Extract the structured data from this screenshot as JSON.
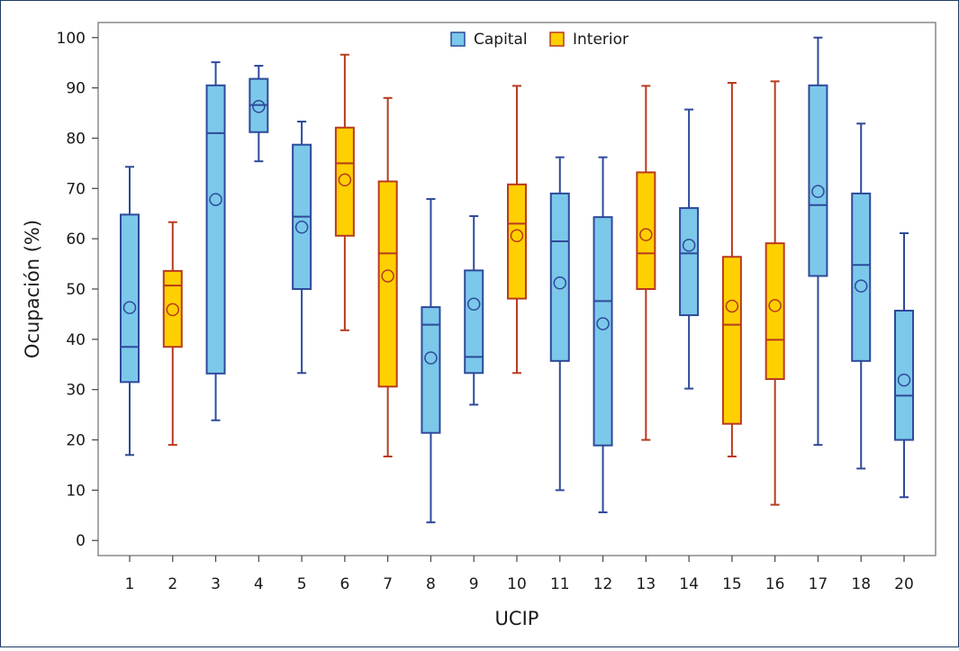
{
  "chart_data": {
    "type": "boxplot",
    "title": "",
    "xlabel": "UCIP",
    "ylabel": "Ocupación (%)",
    "ylim": [
      -3,
      103
    ],
    "yticks": [
      0,
      10,
      20,
      30,
      40,
      50,
      60,
      70,
      80,
      90,
      100
    ],
    "grid": false,
    "legend": {
      "position": "top-center",
      "entries": [
        {
          "name": "Capital",
          "fill": "#7cc8ea",
          "stroke": "#2e4a9a"
        },
        {
          "name": "Interior",
          "fill": "#ffd000",
          "stroke": "#b83a1f"
        }
      ]
    },
    "categories": [
      "1",
      "2",
      "3",
      "4",
      "5",
      "6",
      "7",
      "8",
      "9",
      "10",
      "11",
      "12",
      "13",
      "14",
      "15",
      "16",
      "17",
      "18",
      "20"
    ],
    "boxes": [
      {
        "ucip": "1",
        "group": "Capital",
        "min": 17,
        "q1": 31.5,
        "median": 38.5,
        "q3": 64.8,
        "max": 74.3,
        "mean": 46.3
      },
      {
        "ucip": "2",
        "group": "Interior",
        "min": 19,
        "q1": 38.5,
        "median": 50.7,
        "q3": 53.6,
        "max": 63.3,
        "mean": 45.9
      },
      {
        "ucip": "3",
        "group": "Capital",
        "min": 23.9,
        "q1": 33.2,
        "median": 81,
        "q3": 90.5,
        "max": 95.1,
        "mean": 67.8
      },
      {
        "ucip": "4",
        "group": "Capital",
        "min": 75.4,
        "q1": 81.2,
        "median": 86.6,
        "q3": 91.8,
        "max": 94.4,
        "mean": 86.3
      },
      {
        "ucip": "5",
        "group": "Capital",
        "min": 33.3,
        "q1": 50,
        "median": 64.4,
        "q3": 78.7,
        "max": 83.3,
        "mean": 62.3
      },
      {
        "ucip": "6",
        "group": "Interior",
        "min": 41.8,
        "q1": 60.6,
        "median": 75,
        "q3": 82.1,
        "max": 96.6,
        "mean": 71.7
      },
      {
        "ucip": "7",
        "group": "Interior",
        "min": 16.7,
        "q1": 30.6,
        "median": 57.1,
        "q3": 71.4,
        "max": 88,
        "mean": 52.6
      },
      {
        "ucip": "8",
        "group": "Capital",
        "min": 3.6,
        "q1": 21.4,
        "median": 42.9,
        "q3": 46.4,
        "max": 67.9,
        "mean": 36.3
      },
      {
        "ucip": "9",
        "group": "Capital",
        "min": 27,
        "q1": 33.3,
        "median": 36.5,
        "q3": 53.7,
        "max": 64.5,
        "mean": 47
      },
      {
        "ucip": "10",
        "group": "Interior",
        "min": 33.3,
        "q1": 48.1,
        "median": 63,
        "q3": 70.8,
        "max": 90.4,
        "mean": 60.6
      },
      {
        "ucip": "11",
        "group": "Capital",
        "min": 10,
        "q1": 35.7,
        "median": 59.5,
        "q3": 69,
        "max": 76.2,
        "mean": 51.2
      },
      {
        "ucip": "12",
        "group": "Capital",
        "min": 5.6,
        "q1": 18.9,
        "median": 47.6,
        "q3": 64.3,
        "max": 76.2,
        "mean": 43.1
      },
      {
        "ucip": "13",
        "group": "Interior",
        "min": 20,
        "q1": 50,
        "median": 57.1,
        "q3": 73.2,
        "max": 90.4,
        "mean": 60.8
      },
      {
        "ucip": "14",
        "group": "Capital",
        "min": 30.2,
        "q1": 44.8,
        "median": 57.1,
        "q3": 66.1,
        "max": 85.7,
        "mean": 58.7
      },
      {
        "ucip": "15",
        "group": "Interior",
        "min": 16.7,
        "q1": 23.2,
        "median": 42.9,
        "q3": 56.4,
        "max": 91,
        "mean": 46.6
      },
      {
        "ucip": "16",
        "group": "Interior",
        "min": 7.1,
        "q1": 32.1,
        "median": 39.9,
        "q3": 59.1,
        "max": 91.3,
        "mean": 46.7
      },
      {
        "ucip": "17",
        "group": "Capital",
        "min": 19,
        "q1": 52.6,
        "median": 66.7,
        "q3": 90.5,
        "max": 100,
        "mean": 69.4
      },
      {
        "ucip": "18",
        "group": "Capital",
        "min": 14.3,
        "q1": 35.7,
        "median": 54.8,
        "q3": 69,
        "max": 82.9,
        "mean": 50.6
      },
      {
        "ucip": "20",
        "group": "Capital",
        "min": 8.6,
        "q1": 20,
        "median": 28.8,
        "q3": 45.7,
        "max": 61.1,
        "mean": 31.9
      }
    ]
  }
}
